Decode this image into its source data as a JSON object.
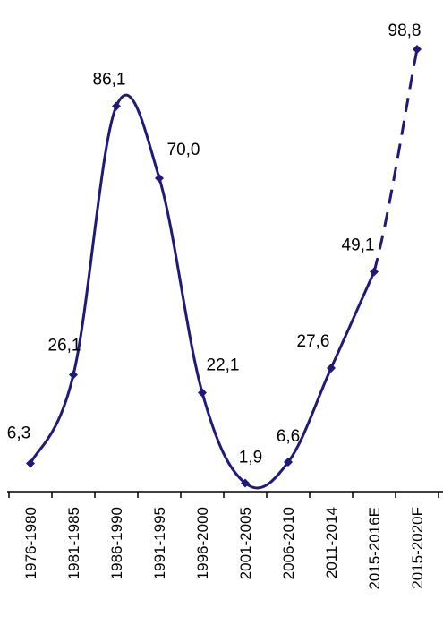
{
  "chart_data": {
    "type": "line",
    "title": "",
    "xlabel": "",
    "ylabel": "",
    "categories": [
      "1976-1980",
      "1981-1985",
      "1986-1990",
      "1991-1995",
      "1996-2000",
      "2001-2005",
      "2006-2010",
      "2011-2014",
      "2015-2016E",
      "2015-2020F"
    ],
    "values": [
      6.3,
      26.1,
      86.1,
      70.0,
      22.1,
      1.9,
      6.6,
      27.6,
      49.1,
      98.8
    ],
    "data_labels": [
      "6,3",
      "26,1",
      "86,1",
      "70,0",
      "22,1",
      "1,9",
      "6,6",
      "27,6",
      "49,1",
      "98,8"
    ],
    "forecast_dashed_from_index": 8,
    "ylim": [
      0,
      100
    ],
    "grid": false,
    "legend": "none",
    "colors": {
      "line": "#1f1a7a",
      "axis": "#000000",
      "text": "#000000"
    }
  }
}
